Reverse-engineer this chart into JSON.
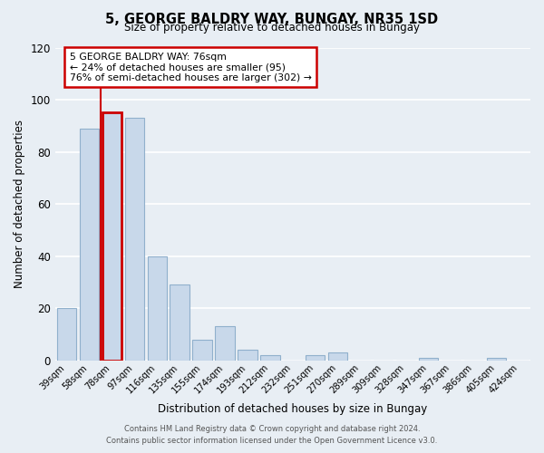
{
  "title": "5, GEORGE BALDRY WAY, BUNGAY, NR35 1SD",
  "subtitle": "Size of property relative to detached houses in Bungay",
  "xlabel": "Distribution of detached houses by size in Bungay",
  "ylabel": "Number of detached properties",
  "bar_labels": [
    "39sqm",
    "58sqm",
    "78sqm",
    "97sqm",
    "116sqm",
    "135sqm",
    "155sqm",
    "174sqm",
    "193sqm",
    "212sqm",
    "232sqm",
    "251sqm",
    "270sqm",
    "289sqm",
    "309sqm",
    "328sqm",
    "347sqm",
    "367sqm",
    "386sqm",
    "405sqm",
    "424sqm"
  ],
  "bar_values": [
    20,
    89,
    95,
    93,
    40,
    29,
    8,
    13,
    4,
    2,
    0,
    2,
    3,
    0,
    0,
    0,
    1,
    0,
    0,
    1,
    0
  ],
  "bar_color": "#c8d8ea",
  "bar_edge_color": "#90b0cc",
  "highlight_bar_index": 2,
  "red_line_x": 1.5,
  "highlight_color": "#cc0000",
  "ylim": [
    0,
    120
  ],
  "yticks": [
    0,
    20,
    40,
    60,
    80,
    100,
    120
  ],
  "annotation_title": "5 GEORGE BALDRY WAY: 76sqm",
  "annotation_line1": "← 24% of detached houses are smaller (95)",
  "annotation_line2": "76% of semi-detached houses are larger (302) →",
  "annotation_box_color": "#ffffff",
  "annotation_box_edge_color": "#cc0000",
  "footer_line1": "Contains HM Land Registry data © Crown copyright and database right 2024.",
  "footer_line2": "Contains public sector information licensed under the Open Government Licence v3.0.",
  "background_color": "#e8eef4",
  "grid_color": "#ffffff"
}
